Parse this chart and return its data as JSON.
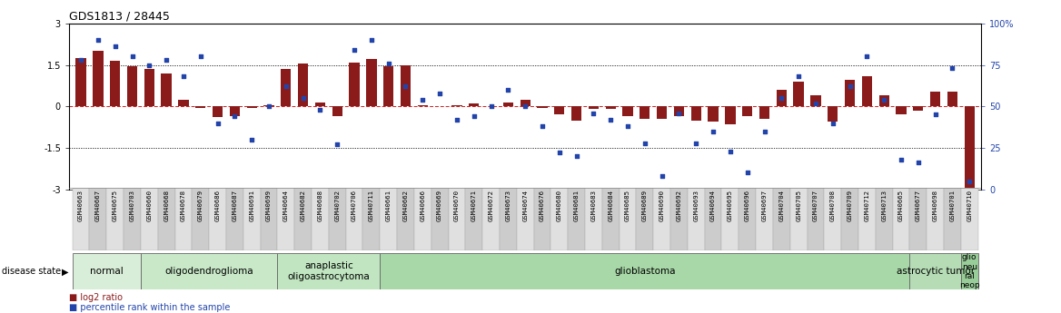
{
  "title": "GDS1813 / 28445",
  "samples": [
    "GSM40663",
    "GSM40667",
    "GSM40675",
    "GSM40703",
    "GSM40660",
    "GSM40668",
    "GSM40678",
    "GSM40679",
    "GSM40686",
    "GSM40687",
    "GSM40691",
    "GSM40699",
    "GSM40664",
    "GSM40682",
    "GSM40688",
    "GSM40702",
    "GSM40706",
    "GSM40711",
    "GSM40661",
    "GSM40662",
    "GSM40666",
    "GSM40669",
    "GSM40670",
    "GSM40671",
    "GSM40672",
    "GSM40673",
    "GSM40674",
    "GSM40676",
    "GSM40680",
    "GSM40681",
    "GSM40683",
    "GSM40684",
    "GSM40685",
    "GSM40689",
    "GSM40690",
    "GSM40692",
    "GSM40693",
    "GSM40694",
    "GSM40695",
    "GSM40696",
    "GSM40697",
    "GSM40704",
    "GSM40705",
    "GSM40707",
    "GSM40708",
    "GSM40709",
    "GSM40712",
    "GSM40713",
    "GSM40665",
    "GSM40677",
    "GSM40698",
    "GSM40701",
    "GSM40710"
  ],
  "log2_ratio": [
    1.75,
    2.0,
    1.65,
    1.45,
    1.35,
    1.2,
    0.25,
    -0.05,
    -0.4,
    -0.35,
    -0.05,
    0.05,
    1.35,
    1.55,
    0.15,
    -0.35,
    1.6,
    1.7,
    1.45,
    1.5,
    0.05,
    0.0,
    0.05,
    0.1,
    0.0,
    0.15,
    0.25,
    -0.05,
    -0.3,
    -0.5,
    -0.1,
    -0.1,
    -0.35,
    -0.45,
    -0.45,
    -0.35,
    -0.5,
    -0.55,
    -0.65,
    -0.35,
    -0.45,
    0.6,
    0.9,
    0.4,
    -0.55,
    0.95,
    1.1,
    0.4,
    -0.3,
    -0.15,
    0.55,
    0.55,
    -3.0
  ],
  "percentile": [
    78,
    90,
    86,
    80,
    75,
    78,
    68,
    80,
    40,
    44,
    30,
    50,
    62,
    55,
    48,
    27,
    84,
    90,
    76,
    62,
    54,
    58,
    42,
    44,
    50,
    60,
    50,
    38,
    22,
    20,
    46,
    42,
    38,
    28,
    8,
    46,
    28,
    35,
    23,
    10,
    35,
    55,
    68,
    52,
    40,
    62,
    80,
    54,
    18,
    16,
    45,
    73,
    5
  ],
  "disease_groups": [
    {
      "label": "normal",
      "start": 0,
      "end": 4,
      "color": "#d9eed9"
    },
    {
      "label": "oligodendroglioma",
      "start": 4,
      "end": 12,
      "color": "#c8e8c8"
    },
    {
      "label": "anaplastic\noligoastrocytoma",
      "start": 12,
      "end": 18,
      "color": "#c0e5c0"
    },
    {
      "label": "glioblastoma",
      "start": 18,
      "end": 49,
      "color": "#a8d8a8"
    },
    {
      "label": "astrocytic tumor",
      "start": 49,
      "end": 52,
      "color": "#b5dcb5"
    },
    {
      "label": "glio\nneu\nral\nneop",
      "start": 52,
      "end": 53,
      "color": "#98cc98"
    }
  ],
  "ylim_left": [
    -3.0,
    3.0
  ],
  "ylim_right": [
    0,
    100
  ],
  "bar_color": "#8B1A1A",
  "dot_color": "#2244AA",
  "hline_color": "#cc2222",
  "dotted_line_color": "#444444",
  "background_color": "#ffffff",
  "title_fontsize": 9,
  "tick_fontsize": 6.5,
  "label_fontsize": 7
}
